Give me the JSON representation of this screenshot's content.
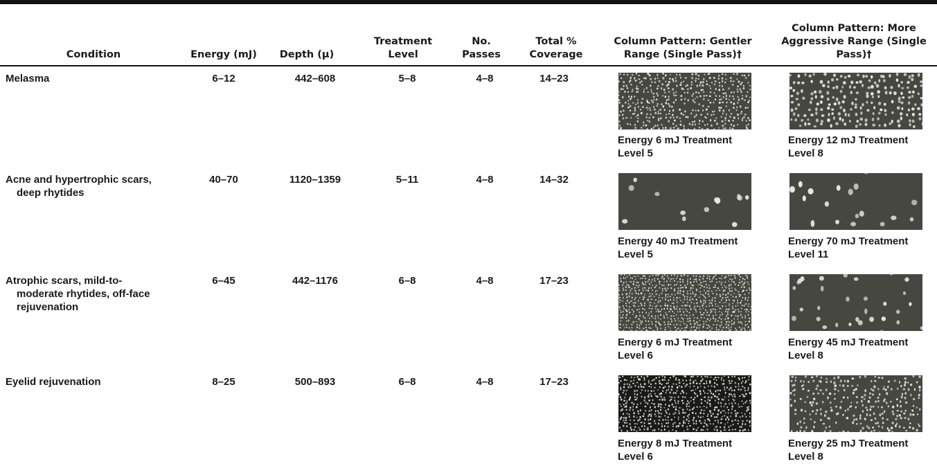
{
  "headers": {
    "condition": "Condition",
    "energy": "Energy (mJ)",
    "depth": "Depth (μ)",
    "treatment_level": "Treatment Level",
    "no_passes": "No. Passes",
    "coverage": "Total % Coverage",
    "gentler": "Column Pattern: Gentler Range (Single Pass)†",
    "aggressive": "Column Pattern: More Aggressive Range (Single Pass)†"
  },
  "rows": [
    {
      "condition_line1": "Melasma",
      "condition_line2": "",
      "condition_line3": "",
      "energy": "6–12",
      "depth": "442–608",
      "treatment_level": "5–8",
      "no_passes": "4–8",
      "coverage": "14–23",
      "gentler_caption_line1": "Energy 6 mJ Treatment",
      "gentler_caption_line2": "Level 5",
      "aggressive_caption_line1": "Energy 12 mJ Treatment",
      "aggressive_caption_line2": "Level 8"
    },
    {
      "condition_line1": "Acne and hypertrophic scars,",
      "condition_line2": "deep rhytides",
      "condition_line3": "",
      "energy": "40–70",
      "depth": "1120–1359",
      "treatment_level": "5–11",
      "no_passes": "4–8",
      "coverage": "14–32",
      "gentler_caption_line1": "Energy 40 mJ Treatment",
      "gentler_caption_line2": "Level 5",
      "aggressive_caption_line1": "Energy 70 mJ Treatment",
      "aggressive_caption_line2": "Level 11"
    },
    {
      "condition_line1": "Atrophic scars, mild-to-",
      "condition_line2": "moderate rhytides, off-face",
      "condition_line3": "rejuvenation",
      "energy": "6–45",
      "depth": "442–1176",
      "treatment_level": "6–8",
      "no_passes": "4–8",
      "coverage": "17–23",
      "gentler_caption_line1": "Energy 6 mJ Treatment",
      "gentler_caption_line2": "Level 6",
      "aggressive_caption_line1": "Energy 45 mJ Treatment",
      "aggressive_caption_line2": "Level 8"
    },
    {
      "condition_line1": "Eyelid rejuvenation",
      "condition_line2": "",
      "condition_line3": "",
      "energy": "8–25",
      "depth": "500–893",
      "treatment_level": "6–8",
      "no_passes": "4–8",
      "coverage": "17–23",
      "gentler_caption_line1": "Energy 8 mJ Treatment",
      "gentler_caption_line2": "Level 6",
      "aggressive_caption_line1": "Energy 25 mJ Treatment",
      "aggressive_caption_line2": "Level 8"
    }
  ],
  "patterns": {
    "dot_color": "#e8e8e0",
    "background_color": "#3a3b36"
  }
}
